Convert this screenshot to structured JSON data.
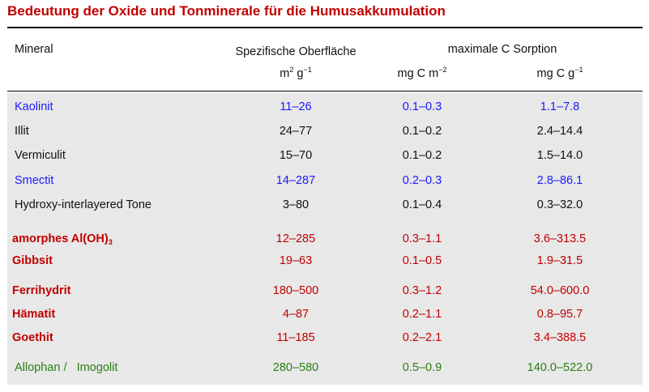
{
  "title": "Bedeutung der Oxide und Tonminerale für die Humusakkumulation",
  "header": {
    "mineral": "Mineral",
    "surface": "Spezifische Oberfläche",
    "surface_unit_m": "m",
    "surface_unit_exp": "2",
    "surface_unit_g": " g",
    "surface_unit_gexp": "−1",
    "sorption": "maximale C Sorption",
    "sorp1_base": "mg C m",
    "sorp1_exp": "−2",
    "sorp2_base": "mg C g",
    "sorp2_exp": "−1"
  },
  "rows": [
    {
      "mineral": "Kaolinit",
      "surface": "11–26",
      "sorp_m2": "0.1–0.3",
      "sorp_g": "1.1–7.8",
      "color": "#1a1aff"
    },
    {
      "mineral": "Illit",
      "surface": "24–77",
      "sorp_m2": "0.1–0.2",
      "sorp_g": "2.4–14.4",
      "color": "#111111"
    },
    {
      "mineral": "Vermiculit",
      "surface": "15–70",
      "sorp_m2": "0.1–0.2",
      "sorp_g": "1.5–14.0",
      "color": "#111111"
    },
    {
      "mineral": "Smectit",
      "surface": "14–287",
      "sorp_m2": "0.2–0.3",
      "sorp_g": "2.8–86.1",
      "color": "#1a1aff"
    },
    {
      "mineral": "Hydroxy-interlayered Tone",
      "surface": "3–80",
      "sorp_m2": "0.1–0.4",
      "sorp_g": "0.3–32.0",
      "color": "#111111"
    },
    {
      "mineral": "amorphes Al(OH)",
      "mineral_sub": "3",
      "surface": "12–285",
      "sorp_m2": "0.3–1.1",
      "sorp_g": "3.6–313.5",
      "color": "#c00000"
    },
    {
      "mineral": "Gibbsit",
      "surface": "19–63",
      "sorp_m2": "0.1–0.5",
      "sorp_g": "1.9–31.5",
      "color": "#c00000"
    },
    {
      "mineral": "Ferrihydrit",
      "surface": "180–500",
      "sorp_m2": "0.3–1.2",
      "sorp_g": "54.0–600.0",
      "color": "#c00000"
    },
    {
      "mineral": "Hämatit",
      "surface": "4–87",
      "sorp_m2": "0.2–1.1",
      "sorp_g": "0.8–95.7",
      "color": "#c00000"
    },
    {
      "mineral": "Goethit",
      "surface": "11–185",
      "sorp_m2": "0.2–2.1",
      "sorp_g": "3.4–388.5",
      "color": "#c00000"
    },
    {
      "mineral": "Allophan /   Imogolit",
      "surface": "280–580",
      "sorp_m2": "0.5–0.9",
      "sorp_g": "140.0–522.0",
      "color": "#2e7d14"
    }
  ]
}
